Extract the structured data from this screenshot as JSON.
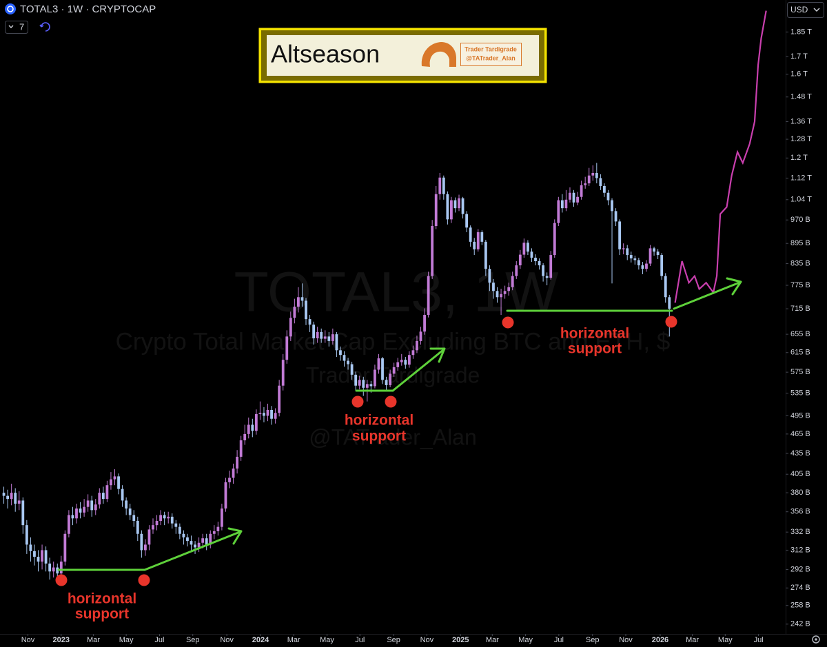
{
  "header": {
    "symbol": "TOTAL3 · 1W · CRYPTOCAP",
    "indicator_count": 7,
    "currency": "USD"
  },
  "title_box": {
    "title": "Altseason",
    "credit": [
      "Trader Tardigrade",
      "@TATrader_Alan"
    ]
  },
  "watermark": [
    "TOTAL3, 1W",
    "Crypto Total Market Cap Excluding BTC and ETH, $",
    "Trader Tardigrade",
    "@TATrader_Alan"
  ],
  "chart_data": {
    "type": "candlestick",
    "log_scale": true,
    "grid": false,
    "up_color": "#c27bd6",
    "down_color": "#a9c8f2",
    "ylim": [
      234,
      2065
    ],
    "yticks": [
      {
        "value": 1850,
        "label": "1.85 T"
      },
      {
        "value": 1700,
        "label": "1.7 T"
      },
      {
        "value": 1600,
        "label": "1.6 T"
      },
      {
        "value": 1480,
        "label": "1.48 T"
      },
      {
        "value": 1360,
        "label": "1.36 T"
      },
      {
        "value": 1280,
        "label": "1.28 T"
      },
      {
        "value": 1200,
        "label": "1.2 T"
      },
      {
        "value": 1120,
        "label": "1.12 T"
      },
      {
        "value": 1040,
        "label": "1.04 T"
      },
      {
        "value": 970,
        "label": "970 B"
      },
      {
        "value": 895,
        "label": "895 B"
      },
      {
        "value": 835,
        "label": "835 B"
      },
      {
        "value": 775,
        "label": "775 B"
      },
      {
        "value": 715,
        "label": "715 B"
      },
      {
        "value": 655,
        "label": "655 B"
      },
      {
        "value": 615,
        "label": "615 B"
      },
      {
        "value": 575,
        "label": "575 B"
      },
      {
        "value": 535,
        "label": "535 B"
      },
      {
        "value": 495,
        "label": "495 B"
      },
      {
        "value": 465,
        "label": "465 B"
      },
      {
        "value": 435,
        "label": "435 B"
      },
      {
        "value": 405,
        "label": "405 B"
      },
      {
        "value": 380,
        "label": "380 B"
      },
      {
        "value": 356,
        "label": "356 B"
      },
      {
        "value": 332,
        "label": "332 B"
      },
      {
        "value": 312,
        "label": "312 B"
      },
      {
        "value": 292,
        "label": "292 B"
      },
      {
        "value": 274,
        "label": "274 B"
      },
      {
        "value": 258,
        "label": "258 B"
      },
      {
        "value": 242,
        "label": "242 B"
      }
    ],
    "xlim": [
      -16,
      189.4
    ],
    "xticks": [
      {
        "value": -8.7,
        "label": "Nov"
      },
      {
        "value": 0,
        "label": "2023"
      },
      {
        "value": 8.4,
        "label": "Mar"
      },
      {
        "value": 17,
        "label": "May"
      },
      {
        "value": 25.7,
        "label": "Jul"
      },
      {
        "value": 34.4,
        "label": "Sep"
      },
      {
        "value": 43.3,
        "label": "Nov"
      },
      {
        "value": 52.1,
        "label": "2024"
      },
      {
        "value": 60.8,
        "label": "Mar"
      },
      {
        "value": 69.5,
        "label": "May"
      },
      {
        "value": 78.1,
        "label": "Jul"
      },
      {
        "value": 86.9,
        "label": "Sep"
      },
      {
        "value": 95.6,
        "label": "Nov"
      },
      {
        "value": 104.4,
        "label": "2025"
      },
      {
        "value": 112.7,
        "label": "Mar"
      },
      {
        "value": 121.4,
        "label": "May"
      },
      {
        "value": 130.1,
        "label": "Jul"
      },
      {
        "value": 138.9,
        "label": "Sep"
      },
      {
        "value": 147.6,
        "label": "Nov"
      },
      {
        "value": 156.6,
        "label": "2026"
      },
      {
        "value": 165,
        "label": "Mar"
      },
      {
        "value": 173.6,
        "label": "May"
      },
      {
        "value": 182.3,
        "label": "Jul"
      }
    ],
    "candles": [
      [
        -15,
        380,
        388,
        366,
        376
      ],
      [
        -14,
        376,
        384,
        360,
        372
      ],
      [
        -13,
        372,
        392,
        364,
        380
      ],
      [
        -12,
        380,
        386,
        356,
        366
      ],
      [
        -11,
        366,
        382,
        358,
        370
      ],
      [
        -10,
        370,
        374,
        330,
        340
      ],
      [
        -9,
        340,
        346,
        308,
        318
      ],
      [
        -8,
        318,
        326,
        300,
        311
      ],
      [
        -7,
        311,
        318,
        296,
        305
      ],
      [
        -6,
        305,
        312,
        290,
        300
      ],
      [
        -5,
        300,
        318,
        292,
        312
      ],
      [
        -4,
        312,
        316,
        290,
        298
      ],
      [
        -3,
        298,
        304,
        282,
        290
      ],
      [
        -2,
        290,
        300,
        284,
        294
      ],
      [
        -1,
        294,
        298,
        280,
        288
      ],
      [
        0,
        288,
        306,
        284,
        300
      ],
      [
        1,
        300,
        334,
        296,
        330
      ],
      [
        2,
        330,
        358,
        326,
        352
      ],
      [
        3,
        352,
        362,
        340,
        348
      ],
      [
        4,
        348,
        366,
        342,
        360
      ],
      [
        5,
        360,
        368,
        348,
        355
      ],
      [
        6,
        355,
        372,
        350,
        362
      ],
      [
        7,
        362,
        378,
        356,
        370
      ],
      [
        8,
        370,
        376,
        350,
        358
      ],
      [
        9,
        358,
        372,
        352,
        365
      ],
      [
        10,
        365,
        386,
        360,
        380
      ],
      [
        11,
        380,
        388,
        366,
        372
      ],
      [
        12,
        372,
        396,
        368,
        390
      ],
      [
        13,
        390,
        408,
        384,
        398
      ],
      [
        14,
        398,
        412,
        390,
        402
      ],
      [
        15,
        402,
        406,
        378,
        385
      ],
      [
        16,
        385,
        390,
        362,
        370
      ],
      [
        17,
        370,
        374,
        352,
        360
      ],
      [
        18,
        360,
        366,
        346,
        352
      ],
      [
        19,
        352,
        358,
        338,
        345
      ],
      [
        20,
        345,
        350,
        322,
        330
      ],
      [
        21,
        330,
        334,
        304,
        312
      ],
      [
        22,
        312,
        324,
        306,
        318
      ],
      [
        23,
        318,
        340,
        312,
        335
      ],
      [
        24,
        335,
        348,
        330,
        340
      ],
      [
        25,
        340,
        352,
        334,
        345
      ],
      [
        26,
        345,
        358,
        340,
        352
      ],
      [
        27,
        352,
        356,
        340,
        348
      ],
      [
        28,
        348,
        356,
        342,
        350
      ],
      [
        29,
        350,
        354,
        336,
        342
      ],
      [
        30,
        342,
        346,
        330,
        338
      ],
      [
        31,
        338,
        342,
        324,
        330
      ],
      [
        32,
        330,
        334,
        318,
        326
      ],
      [
        33,
        326,
        330,
        316,
        322
      ],
      [
        34,
        322,
        328,
        312,
        318
      ],
      [
        35,
        318,
        322,
        308,
        315
      ],
      [
        36,
        315,
        326,
        310,
        320
      ],
      [
        37,
        320,
        330,
        314,
        325
      ],
      [
        38,
        325,
        330,
        312,
        318
      ],
      [
        39,
        318,
        334,
        314,
        330
      ],
      [
        40,
        330,
        340,
        324,
        333
      ],
      [
        41,
        333,
        344,
        328,
        338
      ],
      [
        42,
        338,
        366,
        334,
        360
      ],
      [
        43,
        360,
        400,
        356,
        394
      ],
      [
        44,
        394,
        410,
        386,
        400
      ],
      [
        45,
        400,
        420,
        392,
        413
      ],
      [
        46,
        413,
        440,
        406,
        430
      ],
      [
        47,
        430,
        462,
        424,
        455
      ],
      [
        48,
        455,
        480,
        448,
        465
      ],
      [
        49,
        465,
        492,
        458,
        480
      ],
      [
        50,
        480,
        490,
        460,
        470
      ],
      [
        51,
        470,
        506,
        464,
        498
      ],
      [
        52,
        498,
        520,
        488,
        500
      ],
      [
        53,
        500,
        510,
        484,
        495
      ],
      [
        54,
        495,
        516,
        486,
        505
      ],
      [
        55,
        505,
        512,
        480,
        490
      ],
      [
        56,
        490,
        508,
        482,
        500
      ],
      [
        57,
        500,
        560,
        494,
        549
      ],
      [
        58,
        549,
        612,
        540,
        600
      ],
      [
        59,
        600,
        664,
        592,
        650
      ],
      [
        60,
        650,
        708,
        640,
        693
      ],
      [
        61,
        693,
        740,
        680,
        720
      ],
      [
        62,
        720,
        770,
        706,
        744
      ],
      [
        63,
        744,
        780,
        720,
        735
      ],
      [
        64,
        735,
        742,
        676,
        690
      ],
      [
        65,
        690,
        700,
        660,
        677
      ],
      [
        66,
        677,
        684,
        632,
        646
      ],
      [
        67,
        646,
        672,
        636,
        660
      ],
      [
        68,
        660,
        668,
        636,
        645
      ],
      [
        69,
        645,
        664,
        636,
        650
      ],
      [
        70,
        650,
        660,
        628,
        640
      ],
      [
        71,
        640,
        668,
        632,
        655
      ],
      [
        72,
        655,
        660,
        606,
        620
      ],
      [
        73,
        620,
        628,
        598,
        610
      ],
      [
        74,
        610,
        618,
        586,
        598
      ],
      [
        75,
        598,
        604,
        580,
        591
      ],
      [
        76,
        591,
        596,
        560,
        570
      ],
      [
        77,
        570,
        576,
        540,
        549
      ],
      [
        78,
        549,
        568,
        542,
        560
      ],
      [
        79,
        560,
        566,
        530,
        545
      ],
      [
        80,
        545,
        560,
        520,
        552
      ],
      [
        81,
        552,
        558,
        536,
        548
      ],
      [
        82,
        548,
        590,
        544,
        580
      ],
      [
        83,
        580,
        612,
        572,
        603
      ],
      [
        84,
        603,
        606,
        552,
        560
      ],
      [
        85,
        560,
        566,
        540,
        550
      ],
      [
        86,
        550,
        580,
        546,
        572
      ],
      [
        87,
        572,
        594,
        566,
        585
      ],
      [
        88,
        585,
        604,
        578,
        595
      ],
      [
        89,
        595,
        612,
        588,
        600
      ],
      [
        90,
        600,
        606,
        582,
        590
      ],
      [
        91,
        590,
        618,
        584,
        610
      ],
      [
        92,
        610,
        630,
        602,
        620
      ],
      [
        93,
        620,
        652,
        614,
        640
      ],
      [
        94,
        640,
        672,
        632,
        661
      ],
      [
        95,
        661,
        716,
        654,
        700
      ],
      [
        96,
        700,
        812,
        694,
        800
      ],
      [
        97,
        800,
        970,
        792,
        950
      ],
      [
        98,
        950,
        1090,
        940,
        1060
      ],
      [
        99,
        1060,
        1140,
        1040,
        1122
      ],
      [
        100,
        1122,
        1130,
        1040,
        1060
      ],
      [
        101,
        1060,
        1070,
        955,
        972
      ],
      [
        102,
        972,
        1050,
        960,
        1038
      ],
      [
        103,
        1038,
        1048,
        995,
        1010
      ],
      [
        104,
        1010,
        1058,
        1000,
        1045
      ],
      [
        105,
        1045,
        1050,
        975,
        990
      ],
      [
        106,
        990,
        1000,
        930,
        945
      ],
      [
        107,
        945,
        952,
        885,
        900
      ],
      [
        108,
        900,
        912,
        860,
        877
      ],
      [
        109,
        877,
        940,
        870,
        930
      ],
      [
        110,
        930,
        936,
        890,
        900
      ],
      [
        111,
        900,
        906,
        800,
        820
      ],
      [
        112,
        820,
        830,
        760,
        782
      ],
      [
        113,
        782,
        792,
        740,
        760
      ],
      [
        114,
        760,
        770,
        730,
        744
      ],
      [
        115,
        744,
        766,
        700,
        752
      ],
      [
        116,
        752,
        774,
        740,
        760
      ],
      [
        117,
        760,
        782,
        748,
        770
      ],
      [
        118,
        770,
        812,
        762,
        800
      ],
      [
        119,
        800,
        842,
        792,
        830
      ],
      [
        120,
        830,
        875,
        820,
        861
      ],
      [
        121,
        861,
        910,
        852,
        897
      ],
      [
        122,
        897,
        905,
        860,
        870
      ],
      [
        123,
        870,
        880,
        840,
        852
      ],
      [
        124,
        852,
        862,
        830,
        842
      ],
      [
        125,
        842,
        850,
        818,
        830
      ],
      [
        126,
        830,
        836,
        785,
        800
      ],
      [
        127,
        800,
        810,
        775,
        795
      ],
      [
        128,
        795,
        872,
        790,
        860
      ],
      [
        129,
        860,
        972,
        852,
        960
      ],
      [
        130,
        960,
        1050,
        950,
        1038
      ],
      [
        131,
        1038,
        1060,
        995,
        1010
      ],
      [
        132,
        1010,
        1075,
        1000,
        1040
      ],
      [
        133,
        1040,
        1085,
        1030,
        1065
      ],
      [
        134,
        1065,
        1075,
        1015,
        1030
      ],
      [
        135,
        1030,
        1068,
        1020,
        1050
      ],
      [
        136,
        1050,
        1110,
        1040,
        1093
      ],
      [
        137,
        1093,
        1125,
        1080,
        1100
      ],
      [
        138,
        1100,
        1160,
        1090,
        1130
      ],
      [
        139,
        1130,
        1170,
        1110,
        1140
      ],
      [
        140,
        1140,
        1180,
        1100,
        1120
      ],
      [
        141,
        1120,
        1135,
        1075,
        1090
      ],
      [
        142,
        1090,
        1100,
        1050,
        1065
      ],
      [
        143,
        1065,
        1075,
        1020,
        1038
      ],
      [
        144,
        1038,
        1045,
        780,
        1000
      ],
      [
        145,
        1000,
        1010,
        950,
        965
      ],
      [
        146,
        965,
        972,
        860,
        877
      ],
      [
        147,
        877,
        895,
        862,
        880
      ],
      [
        148,
        880,
        890,
        845,
        860
      ],
      [
        149,
        860,
        870,
        838,
        850
      ],
      [
        150,
        850,
        858,
        832,
        845
      ],
      [
        151,
        845,
        852,
        818,
        830
      ],
      [
        152,
        830,
        840,
        805,
        820
      ],
      [
        153,
        820,
        845,
        812,
        835
      ],
      [
        154,
        835,
        890,
        828,
        880
      ],
      [
        155,
        880,
        885,
        858,
        870
      ],
      [
        156,
        870,
        878,
        848,
        860
      ],
      [
        157,
        860,
        866,
        790,
        800
      ],
      [
        158,
        800,
        808,
        730,
        744
      ],
      [
        159,
        744,
        750,
        650,
        715
      ]
    ],
    "projection": {
      "color": "#c93fae",
      "x": [
        160.5,
        162.3,
        164.1,
        165.6,
        166.8,
        168.6,
        170.5,
        171.4,
        172.3,
        174,
        175.3,
        176.8,
        178.2,
        180,
        181.3,
        182.2,
        183,
        184.3
      ],
      "values": [
        730,
        842,
        782,
        800,
        765,
        782,
        756,
        800,
        990,
        1014,
        1130,
        1225,
        1180,
        1260,
        1360,
        1650,
        1810,
        1990
      ]
    },
    "annotations": [
      {
        "text": [
          "horizontal",
          "support"
        ]
      },
      {
        "text": [
          "horizontal",
          "support"
        ]
      },
      {
        "text": [
          "horizontal",
          "support"
        ]
      }
    ]
  }
}
